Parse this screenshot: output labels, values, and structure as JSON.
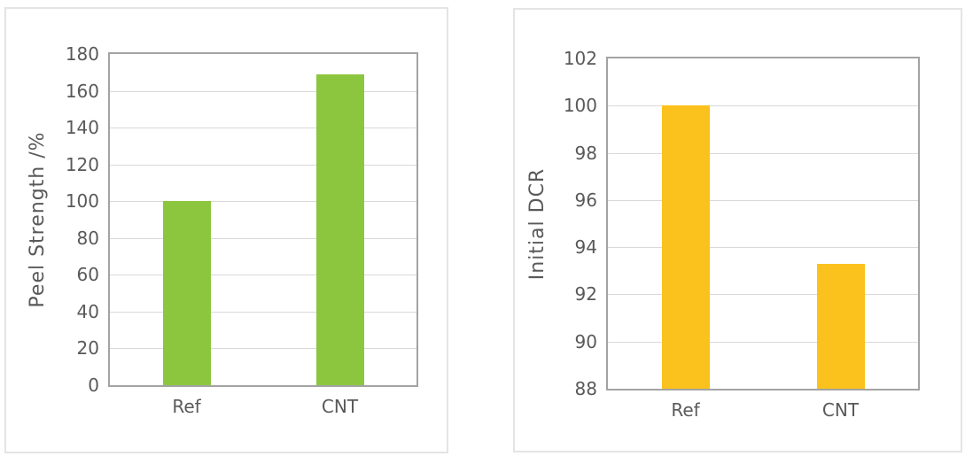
{
  "colors": {
    "background": "#ffffff",
    "panel_border": "#e4e4e4",
    "plot_border": "#a3a3a3",
    "gridline": "#d9d9d9",
    "tick_text": "#595959",
    "green_bar": "#8cc63e",
    "gold_bar": "#fbc21d"
  },
  "chart_data": [
    {
      "type": "bar",
      "title": "",
      "xlabel": "",
      "ylabel": "Peel Strength /%",
      "categories": [
        "Ref",
        "CNT"
      ],
      "values": [
        100,
        169
      ],
      "ylim": [
        0,
        180
      ],
      "yticks": [
        0,
        20,
        40,
        60,
        80,
        100,
        120,
        140,
        160,
        180
      ],
      "grid": true,
      "legend": "none",
      "bar_color": "#8cc63e"
    },
    {
      "type": "bar",
      "title": "",
      "xlabel": "",
      "ylabel": "Initial DCR",
      "categories": [
        "Ref",
        "CNT"
      ],
      "values": [
        100,
        93.3
      ],
      "ylim": [
        88,
        102
      ],
      "yticks": [
        88,
        90,
        92,
        94,
        96,
        98,
        100,
        102
      ],
      "grid": true,
      "legend": "none",
      "bar_color": "#fbc21d"
    }
  ]
}
